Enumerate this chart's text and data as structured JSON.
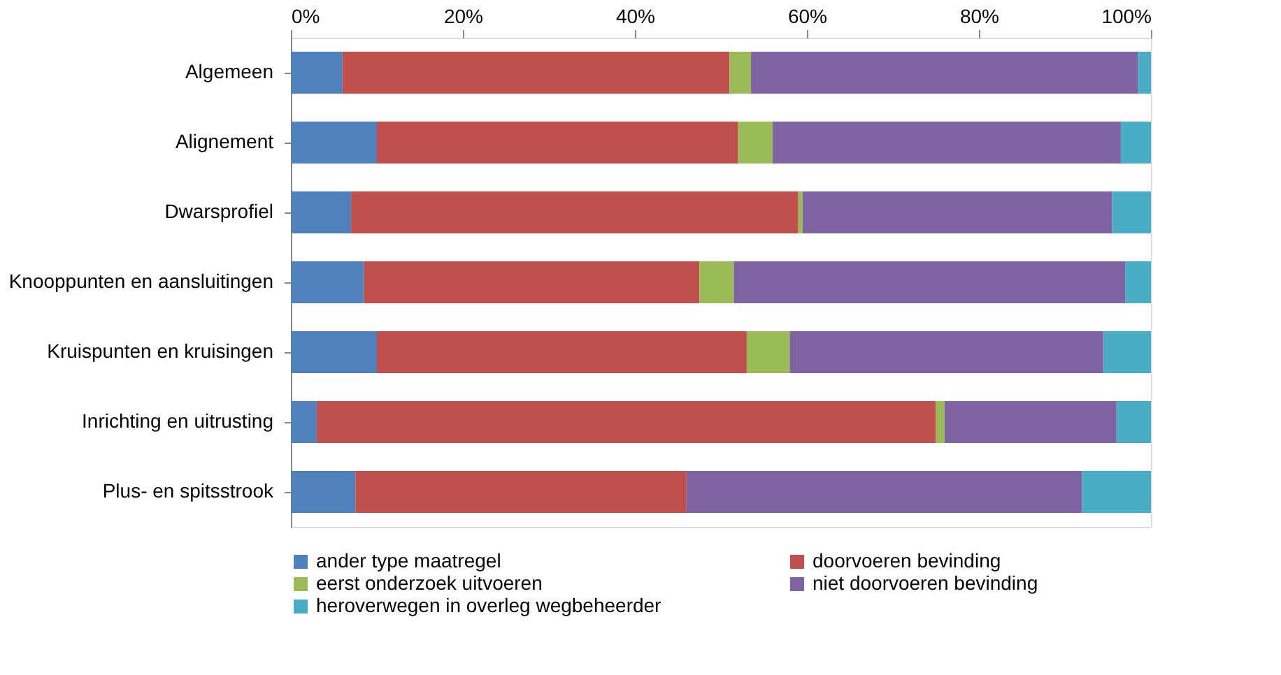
{
  "chart_data": {
    "type": "bar",
    "orientation": "horizontal",
    "stacked": true,
    "categories": [
      "Algemeen",
      "Alignement",
      "Dwarsprofiel",
      "Knooppunten en aansluitingen",
      "Kruispunten en kruisingen",
      "Inrichting en uitrusting",
      "Plus- en spitsstrook"
    ],
    "series": [
      {
        "name": "ander type maatregel",
        "color": "#4f81bd",
        "values": [
          6,
          10,
          7,
          8.5,
          10,
          3,
          7.5
        ]
      },
      {
        "name": "doorvoeren bevinding",
        "color": "#c0504d",
        "values": [
          45,
          42,
          52,
          39,
          43,
          72,
          38.5
        ]
      },
      {
        "name": "eerst onderzoek uitvoeren",
        "color": "#9bbb59",
        "values": [
          2.5,
          4,
          0.5,
          4,
          5,
          1,
          0
        ]
      },
      {
        "name": "niet doorvoeren bevinding",
        "color": "#8064a2",
        "values": [
          45,
          40.5,
          36,
          45.5,
          36.5,
          20,
          46
        ]
      },
      {
        "name": "heroverwegen in overleg wegbeheerder",
        "color": "#4bacc6",
        "values": [
          1.5,
          3.5,
          4.5,
          3,
          5.5,
          4,
          8
        ]
      }
    ],
    "xlim": [
      0,
      100
    ],
    "xticks": [
      {
        "value": 0,
        "label": "0%"
      },
      {
        "value": 20,
        "label": "20%"
      },
      {
        "value": 40,
        "label": "40%"
      },
      {
        "value": 60,
        "label": "60%"
      },
      {
        "value": 80,
        "label": "80%"
      },
      {
        "value": 100,
        "label": "100%"
      }
    ],
    "grid": false,
    "legend": "bottom"
  }
}
